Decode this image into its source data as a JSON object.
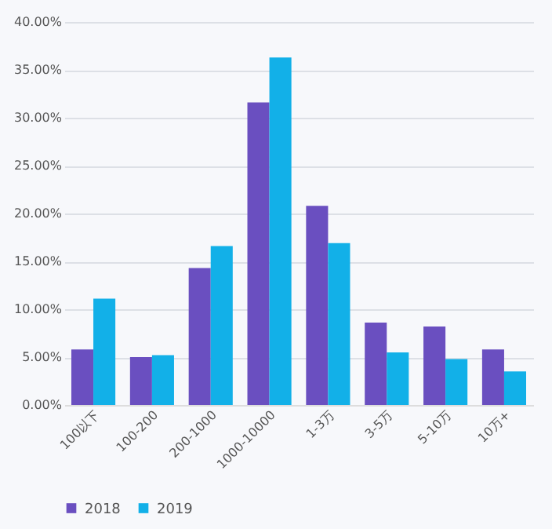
{
  "chart_data": {
    "type": "bar",
    "categories": [
      "100以下",
      "100-200",
      "200-1000",
      "1000-10000",
      "1-3万",
      "3-5万",
      "5-10万",
      "10万+"
    ],
    "series": [
      {
        "name": "2018",
        "color": "#6a4fc0",
        "values": [
          5.8,
          5.0,
          14.3,
          31.6,
          20.8,
          8.6,
          8.2,
          5.8
        ]
      },
      {
        "name": "2019",
        "color": "#12b0e8",
        "values": [
          11.1,
          5.2,
          16.6,
          36.3,
          16.9,
          5.5,
          4.8,
          3.5
        ]
      }
    ],
    "ylim": [
      0,
      40
    ],
    "yticks": [
      {
        "value": 0,
        "label": "0.00%"
      },
      {
        "value": 5,
        "label": "5.00%"
      },
      {
        "value": 10,
        "label": "10.00%"
      },
      {
        "value": 15,
        "label": "15.00%"
      },
      {
        "value": 20,
        "label": "20.00%"
      },
      {
        "value": 25,
        "label": "25.00%"
      },
      {
        "value": 30,
        "label": "30.00%"
      },
      {
        "value": 35,
        "label": "35.00%"
      },
      {
        "value": 40,
        "label": "40.00%"
      }
    ],
    "grid": "y",
    "legend": "bottom"
  }
}
